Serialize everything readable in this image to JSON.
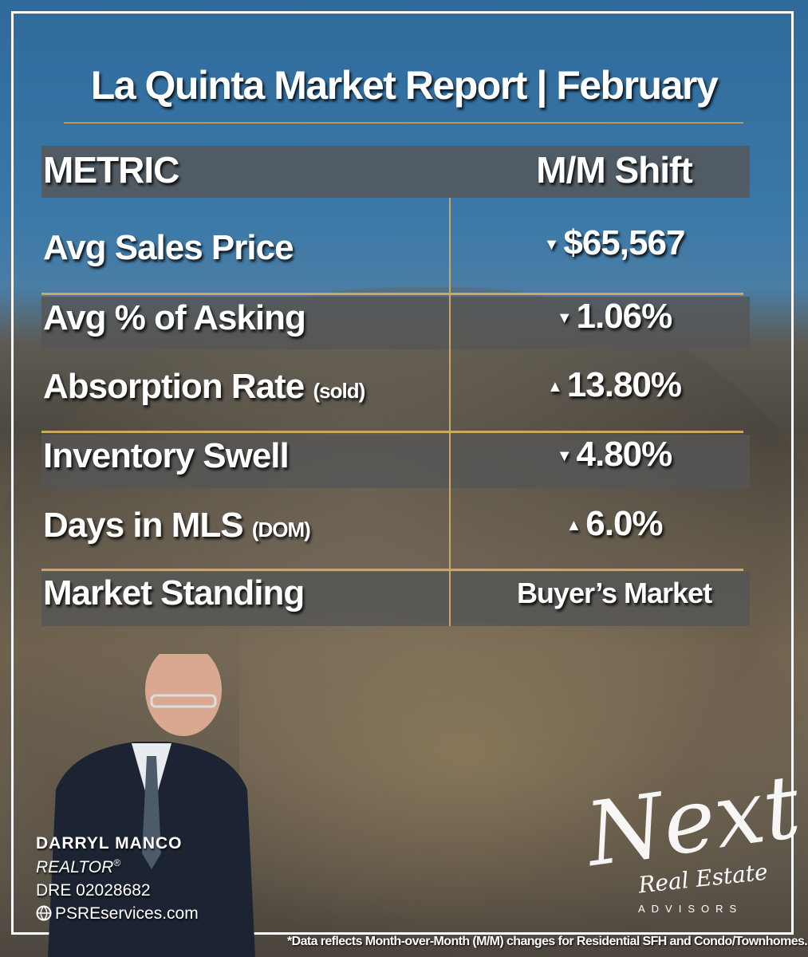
{
  "header": {
    "title": "La Quinta Market Report | February"
  },
  "table": {
    "columns": [
      "METRIC",
      "M/M Shift"
    ],
    "rows": [
      {
        "metric": "Avg Sales Price",
        "direction": "down",
        "value": "$65,567"
      },
      {
        "metric": "Avg % of Asking",
        "direction": "down",
        "value": "1.06%"
      },
      {
        "metric": "Absorption Rate",
        "qualifier": "(sold)",
        "direction": "up",
        "value": "13.80%"
      },
      {
        "metric": "Inventory Swell",
        "direction": "down",
        "value": "4.80%"
      },
      {
        "metric": "Days in MLS",
        "qualifier": "(DOM)",
        "direction": "up",
        "value": "6.0%"
      },
      {
        "metric": "Market Standing",
        "value": "Buyer’s Market"
      }
    ]
  },
  "agent": {
    "name": "DARRYL MANCO",
    "title": "REALTOR",
    "title_mark": "®",
    "license": "DRE 02028682",
    "website": "PSREservices.com"
  },
  "logo": {
    "main": "Next",
    "sub": "Real Estate",
    "tagline": "ADVISORS"
  },
  "footnote": "*Data reflects Month-over-Month (M/M) changes for Residential SFH and Condo/Townhomes."
}
